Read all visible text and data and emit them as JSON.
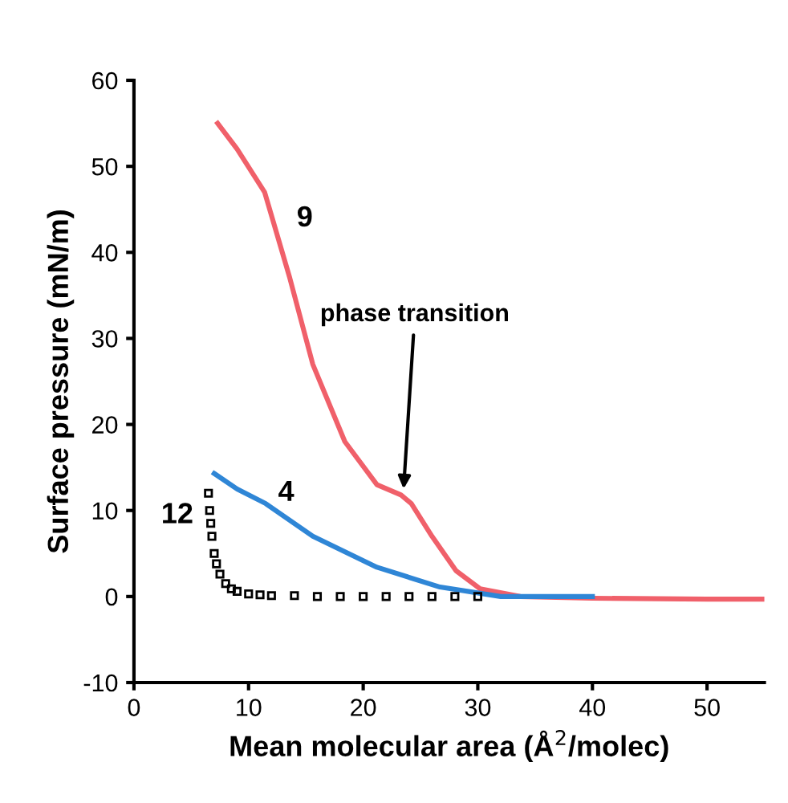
{
  "chart_data": {
    "type": "line",
    "xlabel": "Mean molecular area (Å$^{2}$/molec)",
    "ylabel": "Surface pressure (mN/m)",
    "xlim": [
      0,
      55
    ],
    "ylim": [
      -10,
      60
    ],
    "xticks": [
      0,
      10,
      20,
      30,
      40,
      50
    ],
    "yticks": [
      -10,
      0,
      10,
      20,
      30,
      40,
      50,
      60
    ],
    "grid": false,
    "series": [
      {
        "name": "9",
        "color": "#f0606a",
        "x": [
          7.3,
          9,
          11.4,
          13.6,
          15.6,
          18.4,
          21.2,
          23.3,
          24.2,
          26,
          28.1,
          30.2,
          33.7,
          40,
          50,
          55
        ],
        "values": [
          55,
          52,
          47,
          37,
          27,
          18,
          13,
          11.8,
          10.8,
          7,
          3,
          0.9,
          0,
          -0.2,
          -0.3,
          -0.3
        ]
      },
      {
        "name": "4",
        "color": "#2f86d6",
        "x": [
          7,
          9,
          11.5,
          15.6,
          21.2,
          26.7,
          32,
          40
        ],
        "values": [
          14.3,
          12.5,
          10.8,
          7,
          3.4,
          1.1,
          0,
          0
        ]
      },
      {
        "name": "12",
        "color": "#000000",
        "type": "scatter",
        "marker": "square",
        "x": [
          6.5,
          6.6,
          6.7,
          6.8,
          7,
          7.2,
          7.5,
          8,
          8.5,
          9,
          10,
          11,
          12,
          14,
          16,
          18,
          20,
          22,
          24,
          26,
          28,
          30
        ],
        "values": [
          12,
          10,
          8.5,
          7,
          5,
          3.8,
          2.6,
          1.5,
          0.9,
          0.6,
          0.3,
          0.2,
          0.1,
          0.1,
          0,
          0,
          0,
          0,
          0,
          0,
          0,
          0
        ]
      }
    ],
    "annotations": [
      {
        "text": "phase transition",
        "x": 23.5,
        "y": 12
      }
    ]
  }
}
